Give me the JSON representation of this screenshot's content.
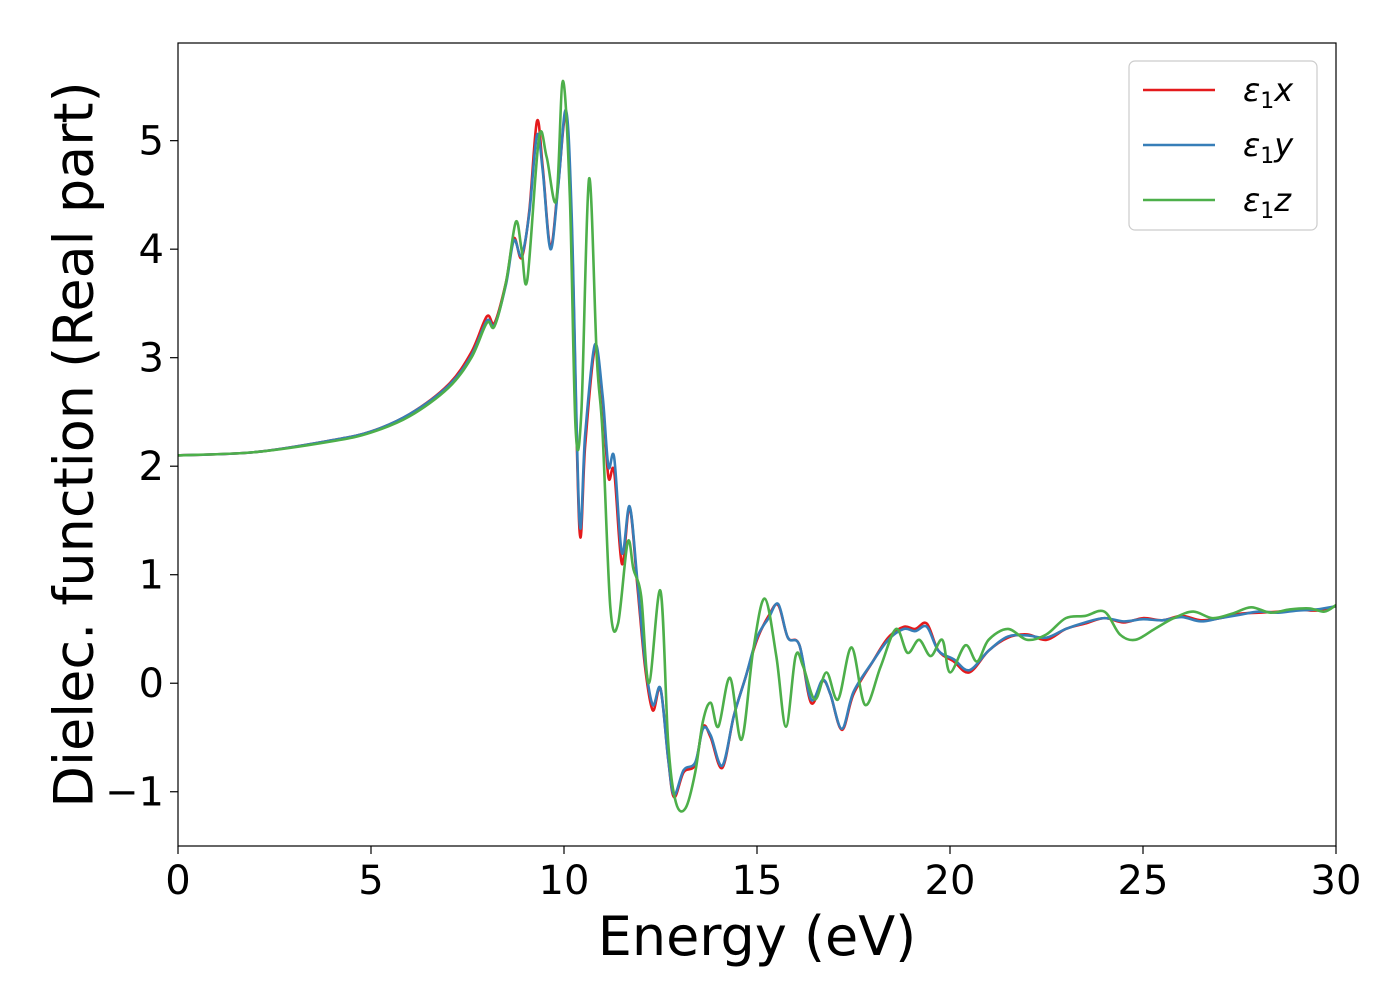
{
  "chart_data": {
    "type": "line",
    "title": "",
    "xlabel": "Energy (eV)",
    "ylabel": "Dielec. function (Real part)",
    "xlim": [
      0,
      30
    ],
    "ylim": [
      -1.5,
      5.9
    ],
    "grid": false,
    "legend_position": "top-right",
    "x_ticks": [
      0,
      5,
      10,
      15,
      20,
      25,
      30
    ],
    "x_tick_labels": [
      "0",
      "5",
      "10",
      "15",
      "20",
      "25",
      "30"
    ],
    "y_ticks": [
      -1,
      0,
      1,
      2,
      3,
      4,
      5
    ],
    "y_tick_labels": [
      "−1",
      "0",
      "1",
      "2",
      "3",
      "4",
      "5"
    ],
    "series": [
      {
        "name": "ε₁x",
        "legend_main": "ε",
        "legend_sub": "1",
        "legend_suffix": "x",
        "color": "#e41a1c",
        "points": [
          [
            0,
            2.1
          ],
          [
            2,
            2.13
          ],
          [
            4,
            2.24
          ],
          [
            5,
            2.32
          ],
          [
            6,
            2.48
          ],
          [
            7,
            2.75
          ],
          [
            7.6,
            3.05
          ],
          [
            8.0,
            3.38
          ],
          [
            8.2,
            3.32
          ],
          [
            8.5,
            3.7
          ],
          [
            8.7,
            4.1
          ],
          [
            8.9,
            3.92
          ],
          [
            9.1,
            4.35
          ],
          [
            9.3,
            5.18
          ],
          [
            9.45,
            4.75
          ],
          [
            9.65,
            4.02
          ],
          [
            9.85,
            4.6
          ],
          [
            10.05,
            5.22
          ],
          [
            10.2,
            4.2
          ],
          [
            10.4,
            1.42
          ],
          [
            10.55,
            2.2
          ],
          [
            10.8,
            3.08
          ],
          [
            11.0,
            2.6
          ],
          [
            11.15,
            1.9
          ],
          [
            11.3,
            1.95
          ],
          [
            11.5,
            1.1
          ],
          [
            11.7,
            1.62
          ],
          [
            11.9,
            0.9
          ],
          [
            12.1,
            0.15
          ],
          [
            12.3,
            -0.25
          ],
          [
            12.5,
            -0.05
          ],
          [
            12.7,
            -0.7
          ],
          [
            12.85,
            -1.05
          ],
          [
            13.1,
            -0.82
          ],
          [
            13.4,
            -0.75
          ],
          [
            13.6,
            -0.4
          ],
          [
            13.8,
            -0.5
          ],
          [
            14.1,
            -0.78
          ],
          [
            14.4,
            -0.3
          ],
          [
            14.7,
            0.05
          ],
          [
            15.0,
            0.4
          ],
          [
            15.3,
            0.62
          ],
          [
            15.55,
            0.72
          ],
          [
            15.8,
            0.42
          ],
          [
            16.1,
            0.35
          ],
          [
            16.4,
            -0.18
          ],
          [
            16.7,
            0.02
          ],
          [
            16.9,
            -0.1
          ],
          [
            17.2,
            -0.43
          ],
          [
            17.5,
            -0.1
          ],
          [
            18.0,
            0.2
          ],
          [
            18.4,
            0.42
          ],
          [
            18.8,
            0.52
          ],
          [
            19.1,
            0.5
          ],
          [
            19.4,
            0.55
          ],
          [
            19.7,
            0.3
          ],
          [
            20.1,
            0.2
          ],
          [
            20.5,
            0.1
          ],
          [
            21.0,
            0.3
          ],
          [
            21.5,
            0.42
          ],
          [
            22.0,
            0.45
          ],
          [
            22.5,
            0.4
          ],
          [
            23.0,
            0.5
          ],
          [
            23.5,
            0.55
          ],
          [
            24.0,
            0.6
          ],
          [
            24.5,
            0.56
          ],
          [
            25.0,
            0.6
          ],
          [
            25.5,
            0.58
          ],
          [
            26.0,
            0.62
          ],
          [
            26.5,
            0.58
          ],
          [
            27.0,
            0.6
          ],
          [
            27.5,
            0.64
          ],
          [
            28.0,
            0.65
          ],
          [
            28.5,
            0.66
          ],
          [
            29.0,
            0.68
          ],
          [
            29.5,
            0.67
          ],
          [
            30.0,
            0.71
          ]
        ]
      },
      {
        "name": "ε₁y",
        "legend_main": "ε",
        "legend_sub": "1",
        "legend_suffix": "y",
        "color": "#377eb8",
        "points": [
          [
            0,
            2.1
          ],
          [
            2,
            2.13
          ],
          [
            4,
            2.24
          ],
          [
            5,
            2.32
          ],
          [
            6,
            2.48
          ],
          [
            7,
            2.74
          ],
          [
            7.6,
            3.02
          ],
          [
            8.0,
            3.34
          ],
          [
            8.2,
            3.3
          ],
          [
            8.5,
            3.68
          ],
          [
            8.7,
            4.08
          ],
          [
            8.9,
            3.94
          ],
          [
            9.1,
            4.33
          ],
          [
            9.3,
            5.05
          ],
          [
            9.45,
            4.72
          ],
          [
            9.65,
            4.0
          ],
          [
            9.85,
            4.58
          ],
          [
            10.05,
            5.28
          ],
          [
            10.2,
            4.3
          ],
          [
            10.4,
            1.5
          ],
          [
            10.55,
            2.3
          ],
          [
            10.8,
            3.12
          ],
          [
            11.0,
            2.65
          ],
          [
            11.15,
            2.0
          ],
          [
            11.3,
            2.08
          ],
          [
            11.5,
            1.2
          ],
          [
            11.7,
            1.63
          ],
          [
            11.9,
            0.95
          ],
          [
            12.1,
            0.2
          ],
          [
            12.3,
            -0.2
          ],
          [
            12.5,
            -0.05
          ],
          [
            12.7,
            -0.7
          ],
          [
            12.85,
            -1.03
          ],
          [
            13.1,
            -0.8
          ],
          [
            13.4,
            -0.73
          ],
          [
            13.6,
            -0.42
          ],
          [
            13.8,
            -0.48
          ],
          [
            14.1,
            -0.76
          ],
          [
            14.4,
            -0.3
          ],
          [
            14.7,
            0.05
          ],
          [
            15.0,
            0.42
          ],
          [
            15.3,
            0.6
          ],
          [
            15.55,
            0.73
          ],
          [
            15.8,
            0.42
          ],
          [
            16.1,
            0.35
          ],
          [
            16.4,
            -0.15
          ],
          [
            16.7,
            0.03
          ],
          [
            16.9,
            -0.1
          ],
          [
            17.2,
            -0.42
          ],
          [
            17.5,
            -0.08
          ],
          [
            18.0,
            0.2
          ],
          [
            18.4,
            0.4
          ],
          [
            18.8,
            0.5
          ],
          [
            19.1,
            0.48
          ],
          [
            19.4,
            0.52
          ],
          [
            19.7,
            0.3
          ],
          [
            20.1,
            0.22
          ],
          [
            20.5,
            0.12
          ],
          [
            21.0,
            0.3
          ],
          [
            21.5,
            0.43
          ],
          [
            22.0,
            0.44
          ],
          [
            22.5,
            0.42
          ],
          [
            23.0,
            0.5
          ],
          [
            23.5,
            0.56
          ],
          [
            24.0,
            0.6
          ],
          [
            24.5,
            0.57
          ],
          [
            25.0,
            0.59
          ],
          [
            25.5,
            0.58
          ],
          [
            26.0,
            0.61
          ],
          [
            26.5,
            0.57
          ],
          [
            27.0,
            0.6
          ],
          [
            27.5,
            0.63
          ],
          [
            28.0,
            0.66
          ],
          [
            28.5,
            0.65
          ],
          [
            29.0,
            0.67
          ],
          [
            29.5,
            0.68
          ],
          [
            30.0,
            0.71
          ]
        ]
      },
      {
        "name": "ε₁z",
        "legend_main": "ε",
        "legend_sub": "1",
        "legend_suffix": "z",
        "color": "#4daf4a",
        "points": [
          [
            0,
            2.1
          ],
          [
            2,
            2.13
          ],
          [
            4,
            2.23
          ],
          [
            5,
            2.31
          ],
          [
            6,
            2.46
          ],
          [
            7,
            2.72
          ],
          [
            7.6,
            3.0
          ],
          [
            8.0,
            3.32
          ],
          [
            8.2,
            3.29
          ],
          [
            8.5,
            3.7
          ],
          [
            8.75,
            4.25
          ],
          [
            8.9,
            4.0
          ],
          [
            9.05,
            3.72
          ],
          [
            9.35,
            5.02
          ],
          [
            9.55,
            4.85
          ],
          [
            9.8,
            4.45
          ],
          [
            9.97,
            5.55
          ],
          [
            10.15,
            4.5
          ],
          [
            10.3,
            2.35
          ],
          [
            10.45,
            2.5
          ],
          [
            10.65,
            4.65
          ],
          [
            10.85,
            3.0
          ],
          [
            11.0,
            2.3
          ],
          [
            11.2,
            0.7
          ],
          [
            11.4,
            0.55
          ],
          [
            11.65,
            1.3
          ],
          [
            11.8,
            1.05
          ],
          [
            12.0,
            0.8
          ],
          [
            12.2,
            0.0
          ],
          [
            12.5,
            0.85
          ],
          [
            12.7,
            -0.55
          ],
          [
            12.9,
            -1.1
          ],
          [
            13.15,
            -1.15
          ],
          [
            13.4,
            -0.82
          ],
          [
            13.6,
            -0.35
          ],
          [
            13.8,
            -0.18
          ],
          [
            14.0,
            -0.4
          ],
          [
            14.3,
            0.05
          ],
          [
            14.6,
            -0.52
          ],
          [
            14.9,
            0.3
          ],
          [
            15.2,
            0.78
          ],
          [
            15.5,
            0.25
          ],
          [
            15.75,
            -0.4
          ],
          [
            16.0,
            0.25
          ],
          [
            16.2,
            0.15
          ],
          [
            16.5,
            -0.15
          ],
          [
            16.8,
            0.1
          ],
          [
            17.1,
            -0.15
          ],
          [
            17.45,
            0.33
          ],
          [
            17.8,
            -0.2
          ],
          [
            18.2,
            0.15
          ],
          [
            18.6,
            0.5
          ],
          [
            18.9,
            0.28
          ],
          [
            19.2,
            0.4
          ],
          [
            19.5,
            0.25
          ],
          [
            19.8,
            0.4
          ],
          [
            20.0,
            0.1
          ],
          [
            20.4,
            0.35
          ],
          [
            20.7,
            0.2
          ],
          [
            21.0,
            0.4
          ],
          [
            21.5,
            0.5
          ],
          [
            22.0,
            0.4
          ],
          [
            22.5,
            0.45
          ],
          [
            23.0,
            0.6
          ],
          [
            23.5,
            0.62
          ],
          [
            24.0,
            0.66
          ],
          [
            24.4,
            0.45
          ],
          [
            24.8,
            0.4
          ],
          [
            25.3,
            0.5
          ],
          [
            25.8,
            0.6
          ],
          [
            26.3,
            0.66
          ],
          [
            26.8,
            0.6
          ],
          [
            27.3,
            0.64
          ],
          [
            27.8,
            0.7
          ],
          [
            28.3,
            0.65
          ],
          [
            28.8,
            0.68
          ],
          [
            29.3,
            0.69
          ],
          [
            29.7,
            0.66
          ],
          [
            30.0,
            0.72
          ]
        ]
      }
    ]
  }
}
